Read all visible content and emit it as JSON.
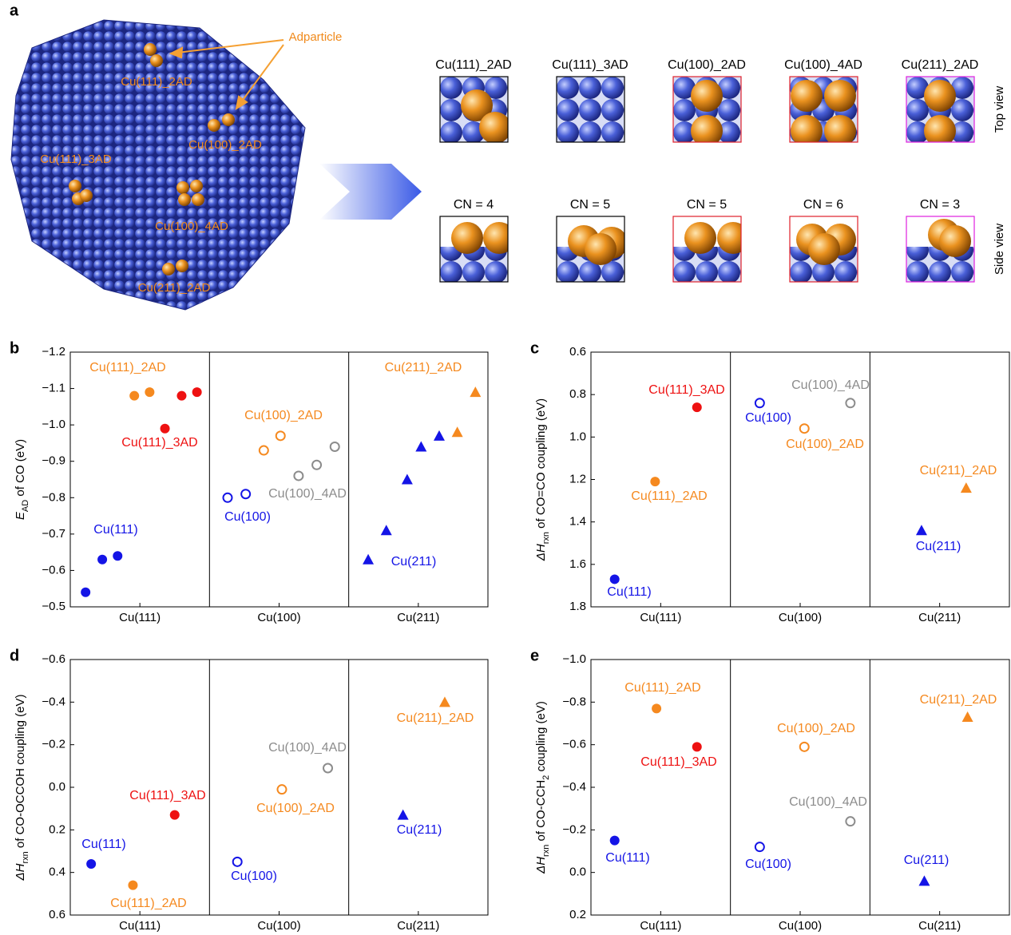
{
  "panel_a": {
    "label": "a",
    "callout": "Adparticle",
    "sites": [
      "Cu(111)_2AD",
      "Cu(100)_2AD",
      "Cu(111)_3AD",
      "Cu(100)_4AD",
      "Cu(211)_2AD"
    ],
    "structures": [
      {
        "name": "Cu(111)_2AD",
        "cn": "CN = 4"
      },
      {
        "name": "Cu(111)_3AD",
        "cn": "CN = 5"
      },
      {
        "name": "Cu(100)_2AD",
        "cn": "CN = 5"
      },
      {
        "name": "Cu(100)_4AD",
        "cn": "CN = 6"
      },
      {
        "name": "Cu(211)_2AD",
        "cn": "CN = 3"
      }
    ],
    "views": [
      "Top view",
      "Side view"
    ]
  },
  "chart_data": [
    {
      "type": "scatter",
      "label": "b",
      "ylabel": [
        "E",
        "AD",
        " of CO (eV)"
      ],
      "xlim": [
        0,
        3
      ],
      "xticks": [
        {
          "value": 0.5,
          "label": "Cu(111)"
        },
        {
          "value": 1.5,
          "label": "Cu(100)"
        },
        {
          "value": 2.5,
          "label": "Cu(211)"
        }
      ],
      "ylim": [
        -0.5,
        -1.2
      ],
      "yticks": [
        {
          "value": -1.2,
          "label": "−1.2"
        },
        {
          "value": -1.1,
          "label": "−1.1"
        },
        {
          "value": -1.0,
          "label": "−1.0"
        },
        {
          "value": -0.9,
          "label": "−0.9"
        },
        {
          "value": -0.8,
          "label": "−0.8"
        },
        {
          "value": -0.7,
          "label": "−0.7"
        },
        {
          "value": -0.6,
          "label": "−0.6"
        },
        {
          "value": -0.5,
          "label": "−0.5"
        }
      ],
      "series": [
        {
          "name": "Cu(111)",
          "color": "#1414e6",
          "marker": "circle",
          "x": [
            0.11,
            0.23,
            0.34
          ],
          "values": [
            -0.54,
            -0.63,
            -0.64
          ]
        },
        {
          "name": "Cu(111)_2AD",
          "color": "#f5891f",
          "marker": "circle",
          "x": [
            0.46,
            0.57
          ],
          "values": [
            -1.08,
            -1.09
          ]
        },
        {
          "name": "Cu(111)_3AD",
          "color": "#ee1111",
          "marker": "circle",
          "x": [
            0.68,
            0.8,
            0.91
          ],
          "values": [
            -0.99,
            -1.08,
            -1.09
          ]
        },
        {
          "name": "Cu(100)",
          "color": "#1414e6",
          "marker": "open-circle",
          "x": [
            1.13,
            1.26
          ],
          "values": [
            -0.8,
            -0.81
          ]
        },
        {
          "name": "Cu(100)_2AD",
          "color": "#f5891f",
          "marker": "open-circle",
          "x": [
            1.39,
            1.51
          ],
          "values": [
            -0.93,
            -0.97
          ]
        },
        {
          "name": "Cu(100)_4AD",
          "color": "#8c8c8c",
          "marker": "open-circle",
          "x": [
            1.64,
            1.77,
            1.9
          ],
          "values": [
            -0.86,
            -0.89,
            -0.94
          ]
        },
        {
          "name": "Cu(211)",
          "color": "#1414e6",
          "marker": "triangle",
          "x": [
            2.14,
            2.27,
            2.42,
            2.52,
            2.65
          ],
          "values": [
            -0.63,
            -0.71,
            -0.85,
            -0.94,
            -0.97
          ]
        },
        {
          "name": "Cu(211)_2AD",
          "color": "#f5891f",
          "marker": "triangle",
          "x": [
            2.78,
            2.91
          ],
          "values": [
            -0.98,
            -1.09
          ]
        }
      ]
    },
    {
      "type": "scatter",
      "label": "c",
      "ylabel": [
        "ΔH",
        "rxn",
        " of CO=CO coupling (eV)"
      ],
      "xlim": [
        0,
        3
      ],
      "xticks": [
        {
          "value": 0.5,
          "label": "Cu(111)"
        },
        {
          "value": 1.5,
          "label": "Cu(100)"
        },
        {
          "value": 2.5,
          "label": "Cu(211)"
        }
      ],
      "ylim": [
        1.8,
        0.6
      ],
      "yticks": [
        0.6,
        0.8,
        {
          "value": 1.0,
          "label": "1.0"
        },
        1.2,
        1.4,
        1.6,
        1.8
      ],
      "series": [
        {
          "name": "Cu(111)",
          "color": "#1414e6",
          "marker": "circle",
          "x": [
            0.17
          ],
          "values": [
            1.67
          ]
        },
        {
          "name": "Cu(111)_2AD",
          "color": "#f5891f",
          "marker": "circle",
          "x": [
            0.46
          ],
          "values": [
            1.21
          ]
        },
        {
          "name": "Cu(111)_3AD",
          "color": "#ee1111",
          "marker": "circle",
          "x": [
            0.76
          ],
          "values": [
            0.86
          ]
        },
        {
          "name": "Cu(100)",
          "color": "#1414e6",
          "marker": "open-circle",
          "x": [
            1.21
          ],
          "values": [
            0.84
          ]
        },
        {
          "name": "Cu(100)_2AD",
          "color": "#f5891f",
          "marker": "open-circle",
          "x": [
            1.53
          ],
          "values": [
            0.96
          ]
        },
        {
          "name": "Cu(100)_4AD",
          "color": "#8c8c8c",
          "marker": "open-circle",
          "x": [
            1.86
          ],
          "values": [
            0.84
          ]
        },
        {
          "name": "Cu(211)",
          "color": "#1414e6",
          "marker": "triangle",
          "x": [
            2.37
          ],
          "values": [
            1.44
          ]
        },
        {
          "name": "Cu(211)_2AD",
          "color": "#f5891f",
          "marker": "triangle",
          "x": [
            2.69
          ],
          "values": [
            1.24
          ]
        }
      ]
    },
    {
      "type": "scatter",
      "label": "d",
      "ylabel": [
        "ΔH",
        "rxn",
        " of CO-OCCOH coupling (eV)"
      ],
      "xlim": [
        0,
        3
      ],
      "xticks": [
        {
          "value": 0.5,
          "label": "Cu(111)"
        },
        {
          "value": 1.5,
          "label": "Cu(100)"
        },
        {
          "value": 2.5,
          "label": "Cu(211)"
        }
      ],
      "ylim": [
        0.6,
        -0.6
      ],
      "yticks": [
        {
          "value": -0.6,
          "label": "−0.6"
        },
        {
          "value": -0.4,
          "label": "−0.4"
        },
        {
          "value": -0.2,
          "label": "−0.2"
        },
        {
          "value": 0,
          "label": "0.0"
        },
        0.2,
        0.4,
        0.6
      ],
      "series": [
        {
          "name": "Cu(111)",
          "color": "#1414e6",
          "marker": "circle",
          "x": [
            0.15
          ],
          "values": [
            0.36
          ]
        },
        {
          "name": "Cu(111)_2AD",
          "color": "#f5891f",
          "marker": "circle",
          "x": [
            0.45
          ],
          "values": [
            0.46
          ]
        },
        {
          "name": "Cu(111)_3AD",
          "color": "#ee1111",
          "marker": "circle",
          "x": [
            0.75
          ],
          "values": [
            0.13
          ]
        },
        {
          "name": "Cu(100)",
          "color": "#1414e6",
          "marker": "open-circle",
          "x": [
            1.2
          ],
          "values": [
            0.35
          ]
        },
        {
          "name": "Cu(100)_2AD",
          "color": "#f5891f",
          "marker": "open-circle",
          "x": [
            1.52
          ],
          "values": [
            0.01
          ]
        },
        {
          "name": "Cu(100)_4AD",
          "color": "#8c8c8c",
          "marker": "open-circle",
          "x": [
            1.85
          ],
          "values": [
            -0.09
          ]
        },
        {
          "name": "Cu(211)",
          "color": "#1414e6",
          "marker": "triangle",
          "x": [
            2.39
          ],
          "values": [
            0.13
          ]
        },
        {
          "name": "Cu(211)_2AD",
          "color": "#f5891f",
          "marker": "triangle",
          "x": [
            2.69
          ],
          "values": [
            -0.4
          ]
        }
      ]
    },
    {
      "type": "scatter",
      "label": "e",
      "ylabel": [
        "ΔH",
        "rxn",
        " of CO-CCH",
        "2",
        " coupling (eV)"
      ],
      "xlim": [
        0,
        3
      ],
      "xticks": [
        {
          "value": 0.5,
          "label": "Cu(111)"
        },
        {
          "value": 1.5,
          "label": "Cu(100)"
        },
        {
          "value": 2.5,
          "label": "Cu(211)"
        }
      ],
      "ylim": [
        0.2,
        -1.0
      ],
      "yticks": [
        {
          "value": -1.0,
          "label": "−1.0"
        },
        {
          "value": -0.8,
          "label": "−0.8"
        },
        {
          "value": -0.6,
          "label": "−0.6"
        },
        {
          "value": -0.4,
          "label": "−0.4"
        },
        {
          "value": -0.2,
          "label": "−0.2"
        },
        {
          "value": 0,
          "label": "0.0"
        },
        0.2
      ],
      "series": [
        {
          "name": "Cu(111)",
          "color": "#1414e6",
          "marker": "circle",
          "x": [
            0.17
          ],
          "values": [
            -0.15
          ]
        },
        {
          "name": "Cu(111)_2AD",
          "color": "#f5891f",
          "marker": "circle",
          "x": [
            0.47
          ],
          "values": [
            -0.77
          ]
        },
        {
          "name": "Cu(111)_3AD",
          "color": "#ee1111",
          "marker": "circle",
          "x": [
            0.76
          ],
          "values": [
            -0.59
          ]
        },
        {
          "name": "Cu(100)",
          "color": "#1414e6",
          "marker": "open-circle",
          "x": [
            1.21
          ],
          "values": [
            -0.12
          ]
        },
        {
          "name": "Cu(100)_2AD",
          "color": "#f5891f",
          "marker": "open-circle",
          "x": [
            1.53
          ],
          "values": [
            -0.59
          ]
        },
        {
          "name": "Cu(100)_4AD",
          "color": "#8c8c8c",
          "marker": "open-circle",
          "x": [
            1.86
          ],
          "values": [
            -0.24
          ]
        },
        {
          "name": "Cu(211)",
          "color": "#1414e6",
          "marker": "triangle",
          "x": [
            2.39
          ],
          "values": [
            0.04
          ]
        },
        {
          "name": "Cu(211)_2AD",
          "color": "#f5891f",
          "marker": "triangle",
          "x": [
            2.7
          ],
          "values": [
            -0.73
          ]
        }
      ]
    }
  ]
}
